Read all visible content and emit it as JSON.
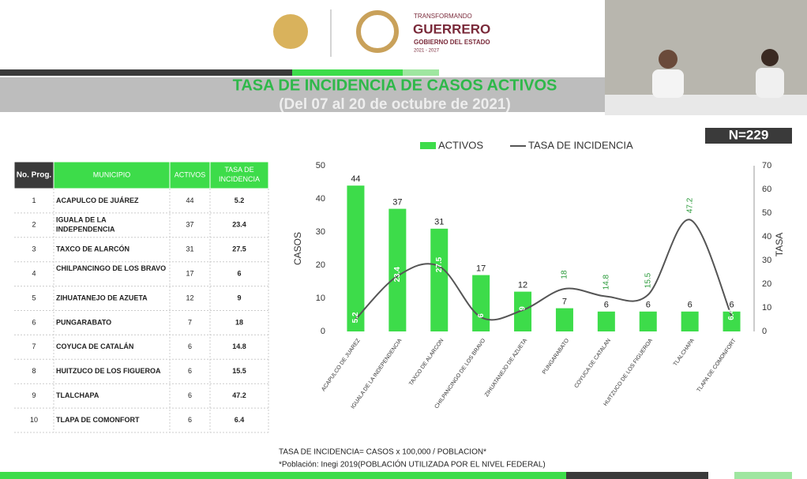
{
  "header": {
    "logo_small": "TRANSFORMANDO",
    "logo_big": "GUERRERO",
    "logo_sub": "GOBIERNO DEL ESTADO",
    "logo_years": "2021 - 2027",
    "badge": "N=229"
  },
  "table": {
    "columns": [
      "No. Prog.",
      "MUNICIPIO",
      "ACTIVOS",
      "TASA DE INCIDENCIA"
    ],
    "rows": [
      [
        "1",
        "ACAPULCO DE JUÁREZ",
        "44",
        "5.2"
      ],
      [
        "2",
        "IGUALA DE LA INDEPENDENCIA",
        "37",
        "23.4"
      ],
      [
        "3",
        "TAXCO DE ALARCÓN",
        "31",
        "27.5"
      ],
      [
        "4",
        "CHILPANCINGO DE LOS BRAVO",
        "17",
        "6"
      ],
      [
        "5",
        "ZIHUATANEJO DE AZUETA",
        "12",
        "9"
      ],
      [
        "6",
        "PUNGARABATO",
        "7",
        "18"
      ],
      [
        "7",
        "COYUCA DE CATALÁN",
        "6",
        "14.8"
      ],
      [
        "8",
        "HUITZUCO DE LOS FIGUEROA",
        "6",
        "15.5"
      ],
      [
        "9",
        "TLALCHAPA",
        "6",
        "47.2"
      ],
      [
        "10",
        "TLAPA DE COMONFORT",
        "6",
        "6.4"
      ]
    ]
  },
  "notes": [
    "TASA DE INCIDENCIA= CASOS x 100,000 / POBLACION*",
    "*Población: Inegi 2019(POBLACIÓN UTILIZADA POR EL NIVEL FEDERAL)"
  ],
  "chart_data": {
    "type": "bar",
    "title": "TASA DE INCIDENCIA DE CASOS ACTIVOS",
    "subtitle": "(Del 07 al 20 de octubre de 2021)",
    "y_label": "CASOS",
    "y2_label": "TASA",
    "categories": [
      "ACAPULCO DE JUAREZ",
      "IGUALA DE LA INDEPENDENCIA",
      "TAXCO DE ALARCON",
      "CHILPANCINGO DE LOS BRAVO",
      "ZIHUATANEJO DE AZUETA",
      "PUNGARABATO",
      "COYUCA DE CATALAN",
      "HUITZUCO DE LOS FIGUEROA",
      "TLALCHAPA",
      "TLAPA DE COMONFORT"
    ],
    "series": [
      {
        "name": "ACTIVOS",
        "color": "#3ddc4a",
        "type": "bar",
        "values": [
          44,
          37,
          31,
          17,
          12,
          7,
          6,
          6,
          6,
          6
        ]
      },
      {
        "name": "TASA DE INCIDENCIA",
        "color": "#555555",
        "type": "line",
        "axis": "y2",
        "values": [
          5.2,
          23.4,
          27.5,
          6,
          9,
          18,
          14.8,
          15.5,
          47.2,
          6.4
        ]
      }
    ],
    "ylim": [
      0,
      50
    ],
    "yticks": [
      0,
      10,
      20,
      30,
      40,
      50
    ],
    "y2lim": [
      0,
      70
    ],
    "y2ticks": [
      0,
      10,
      20,
      30,
      40,
      50,
      60,
      70
    ],
    "legend": "top"
  }
}
